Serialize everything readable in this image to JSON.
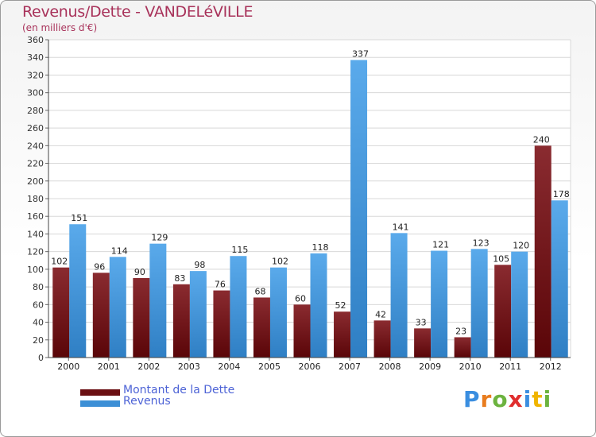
{
  "header": {
    "title": "Revenus/Dette - VANDELéVILLE",
    "subtitle": "(en milliers d'€)"
  },
  "legend": {
    "items": [
      {
        "label": "Montant de la Dette",
        "color": "#6b0f12"
      },
      {
        "label": "Revenus",
        "color": "#3c8fd6"
      }
    ]
  },
  "logo": {
    "text": "Proxiti"
  },
  "colors": {
    "dette_top": "#8a2b30",
    "dette_bottom": "#5a0508",
    "revenus_top": "#5aaaeb",
    "revenus_bottom": "#2f7fc4"
  },
  "chart_data": {
    "type": "bar",
    "title": "Revenus/Dette - VANDELéVILLE",
    "ylabel": "(en milliers d'€)",
    "xlabel": "",
    "categories": [
      "2000",
      "2001",
      "2002",
      "2003",
      "2004",
      "2005",
      "2006",
      "2007",
      "2008",
      "2009",
      "2010",
      "2011",
      "2012"
    ],
    "series": [
      {
        "name": "Montant de la Dette",
        "values": [
          102,
          96,
          90,
          83,
          76,
          68,
          60,
          52,
          42,
          33,
          23,
          105,
          240
        ]
      },
      {
        "name": "Revenus",
        "values": [
          151,
          114,
          129,
          98,
          115,
          102,
          118,
          337,
          141,
          121,
          123,
          120,
          178
        ]
      }
    ],
    "ylim": [
      0,
      360
    ],
    "yticks": [
      0,
      20,
      40,
      60,
      80,
      100,
      120,
      140,
      160,
      180,
      200,
      220,
      240,
      260,
      280,
      300,
      320,
      340,
      360
    ],
    "grid": true,
    "legend_position": "bottom-left"
  }
}
